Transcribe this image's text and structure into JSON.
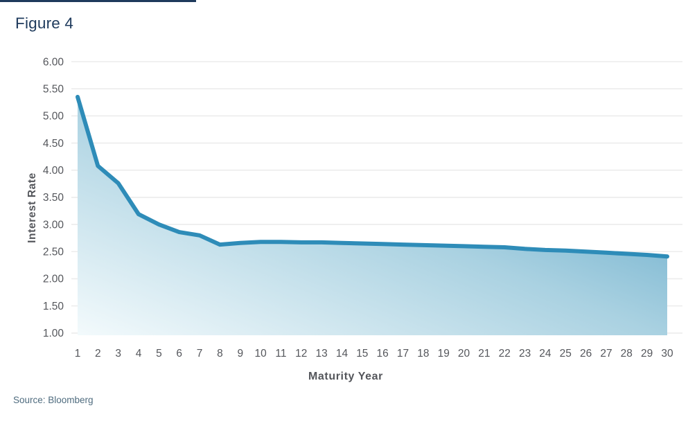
{
  "colors": {
    "title_text": "#1e3a5c",
    "axis_text": "#54565b",
    "gridline": "#ececec",
    "line": "#2e8cb8",
    "fill_light": "#f3fafc",
    "fill_mid": "#a9d1e1",
    "fill_deep": "#4899bf",
    "source_text": "#4e6b7e",
    "accent_bar": "#1e3a5c"
  },
  "chart_data": {
    "type": "area",
    "title": "Figure 4",
    "xlabel": "Maturity Year",
    "ylabel": "Interest Rate",
    "source": "Source: Bloomberg",
    "x": [
      1,
      2,
      3,
      4,
      5,
      6,
      7,
      8,
      9,
      10,
      11,
      12,
      13,
      14,
      15,
      16,
      17,
      18,
      19,
      20,
      21,
      22,
      23,
      24,
      25,
      26,
      27,
      28,
      29,
      30
    ],
    "values": [
      5.35,
      4.08,
      3.76,
      3.19,
      3.0,
      2.86,
      2.8,
      2.63,
      2.66,
      2.68,
      2.68,
      2.67,
      2.67,
      2.66,
      2.65,
      2.64,
      2.63,
      2.62,
      2.61,
      2.6,
      2.59,
      2.58,
      2.55,
      2.53,
      2.52,
      2.5,
      2.48,
      2.46,
      2.44,
      2.41
    ],
    "ylim": [
      1.0,
      6.0
    ],
    "ytick_interval": 0.5,
    "ytick_labels": [
      "6.00",
      "5.50",
      "5.00",
      "4.50",
      "4.00",
      "3.50",
      "3.00",
      "2.50",
      "2.00",
      "1.50",
      "1.00"
    ],
    "xtick_labels": [
      "1",
      "2",
      "3",
      "4",
      "5",
      "6",
      "7",
      "8",
      "9",
      "10",
      "11",
      "12",
      "13",
      "14",
      "15",
      "16",
      "17",
      "18",
      "19",
      "20",
      "21",
      "22",
      "23",
      "24",
      "25",
      "26",
      "27",
      "28",
      "29",
      "30"
    ],
    "grid": "horizontal",
    "legend": "none"
  }
}
